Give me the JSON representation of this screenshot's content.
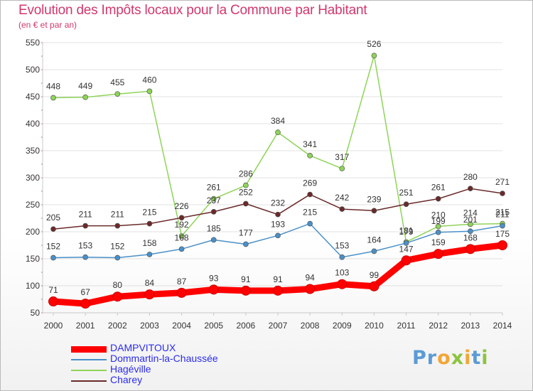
{
  "title": "Evolution des Impôts locaux pour la Commune par Habitant",
  "subtitle": "(en € et par an)",
  "brand": "Proxiti",
  "colors": {
    "title": "#d2386a",
    "legend_text": "#2c2cf0",
    "axis": "#c8c8c8",
    "grid": "#e0e0e0"
  },
  "chart_data": {
    "type": "line",
    "x": [
      "2000",
      "2001",
      "2002",
      "2003",
      "2004",
      "2005",
      "2006",
      "2007",
      "2008",
      "2009",
      "2010",
      "2011",
      "2012",
      "2013",
      "2014"
    ],
    "ylim": [
      50,
      550
    ],
    "yticks": [
      50,
      100,
      150,
      200,
      250,
      300,
      350,
      400,
      450,
      500,
      550
    ],
    "grid": true,
    "legend_position": "bottom-left",
    "series": [
      {
        "name": "DAMPVITOUX",
        "color": "#ff0000",
        "values": [
          71,
          67,
          80,
          84,
          87,
          93,
          91,
          91,
          94,
          103,
          99,
          147,
          159,
          168,
          175
        ]
      },
      {
        "name": "Dommartin-la-Chaussée",
        "color": "#4a90c8",
        "values": [
          152,
          153,
          152,
          158,
          168,
          185,
          177,
          193,
          215,
          153,
          164,
          179,
          199,
          201,
          211
        ]
      },
      {
        "name": "Hagéville",
        "color": "#8fd458",
        "values": [
          448,
          449,
          455,
          460,
          192,
          261,
          286,
          384,
          341,
          317,
          526,
          181,
          210,
          214,
          215
        ]
      },
      {
        "name": "Charey",
        "color": "#6a2a2a",
        "values": [
          205,
          211,
          211,
          215,
          226,
          237,
          252,
          232,
          269,
          242,
          239,
          251,
          261,
          280,
          271
        ]
      }
    ]
  }
}
